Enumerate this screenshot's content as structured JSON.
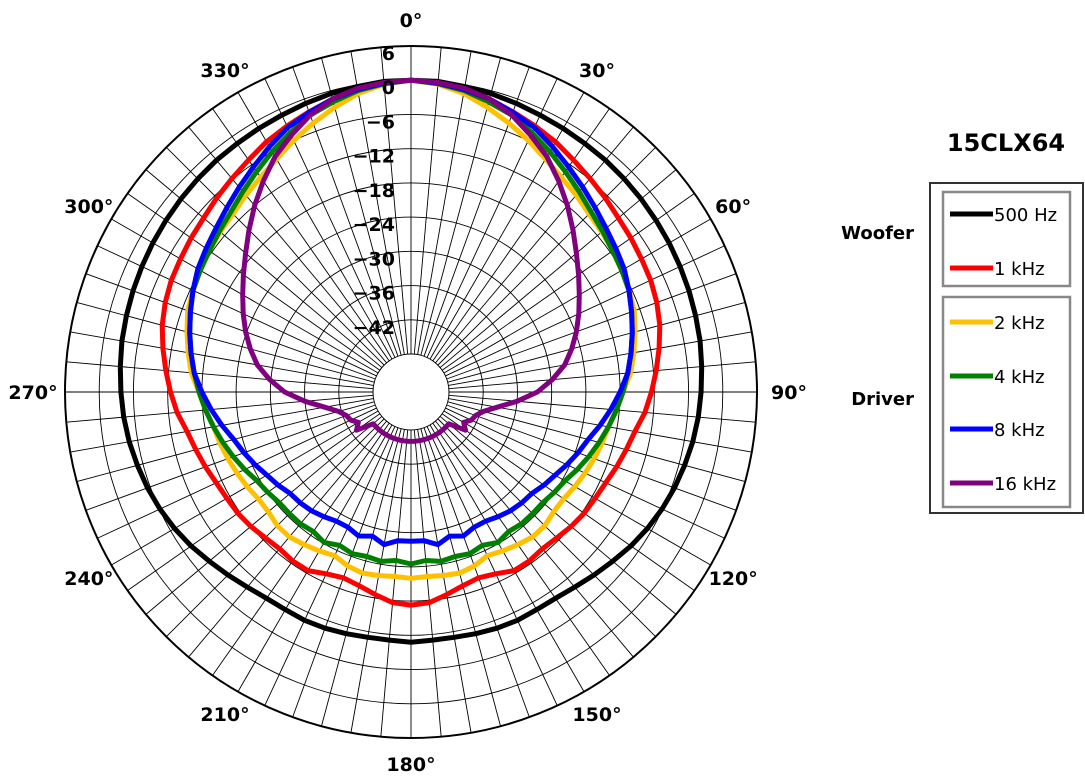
{
  "chart_data": {
    "type": "polar-line",
    "title": "15CLX64",
    "radial_ticks": [
      "6",
      "0",
      "−6",
      "−12",
      "−18",
      "−24",
      "−30",
      "−36",
      "−42"
    ],
    "radial_range_db": [
      -48,
      6
    ],
    "angle_ticks": [
      "0°",
      "30°",
      "60°",
      "90°",
      "120°",
      "150°",
      "180°",
      "210°",
      "240°",
      "270°",
      "300°",
      "330°"
    ],
    "angle_direction": "clockwise, 0° at top",
    "grid": true,
    "legend_placement": "right",
    "legend_groups": [
      {
        "label": "Woofer",
        "series": [
          "500 Hz",
          "1 kHz"
        ]
      },
      {
        "label": "Driver",
        "series": [
          "2 kHz",
          "4 kHz",
          "8 kHz",
          "16 kHz"
        ]
      }
    ],
    "series_note": "values are dB at angles 0,5,...,180 degrees; pattern mirrored for 185-355 degrees",
    "series": [
      {
        "name": "500 Hz",
        "color": "#000000",
        "values": [
          0,
          0,
          -0.3,
          -0.5,
          -0.8,
          -1.1,
          -1.3,
          -1.5,
          -1.6,
          -1.8,
          -2,
          -2.2,
          -2.4,
          -2.6,
          -2.8,
          -3,
          -3.2,
          -3.5,
          -3.8,
          -4.1,
          -4.5,
          -5,
          -5.5,
          -6.1,
          -6.8,
          -7.6,
          -8.5,
          -9.3,
          -10,
          -10.5,
          -10.6,
          -10.5,
          -10.6,
          -10.8,
          -11,
          -11,
          -10.8
        ]
      },
      {
        "name": "1 kHz",
        "color": "#ff0000",
        "values": [
          0,
          -0.3,
          -0.8,
          -1.5,
          -2.4,
          -3.2,
          -4,
          -5,
          -5.8,
          -6.5,
          -7.2,
          -7.6,
          -8,
          -8.3,
          -8.8,
          -9.5,
          -10.5,
          -11.5,
          -12.5,
          -13.5,
          -14.8,
          -15.6,
          -16.3,
          -17,
          -17.4,
          -17.6,
          -18,
          -18.5,
          -18.8,
          -18.5,
          -18.5,
          -19.5,
          -20,
          -19.5,
          -18.6,
          -17.6,
          -17.3
        ]
      },
      {
        "name": "2 kHz",
        "color": "#ffc000",
        "values": [
          0,
          -0.5,
          -1.5,
          -3,
          -4.5,
          -6,
          -7.5,
          -8.7,
          -9.6,
          -10.5,
          -11,
          -11.5,
          -12,
          -12.5,
          -13,
          -14,
          -15,
          -16,
          -17.5,
          -18.5,
          -19.5,
          -20,
          -20.5,
          -21,
          -21.5,
          -22,
          -22,
          -21.5,
          -21.5,
          -22,
          -22.5,
          -23,
          -22.2,
          -21.8,
          -22,
          -22.2,
          -22
        ]
      },
      {
        "name": "4 kHz",
        "color": "#008000",
        "values": [
          0,
          -0.4,
          -1,
          -2,
          -3,
          -4.5,
          -6,
          -7.5,
          -8.8,
          -10,
          -10.8,
          -11.5,
          -12,
          -12.5,
          -13.5,
          -14.5,
          -15.5,
          -16.5,
          -17.5,
          -18.5,
          -19.5,
          -20.5,
          -21.5,
          -22.5,
          -23.5,
          -24,
          -24.5,
          -24.5,
          -24.5,
          -24.8,
          -24.2,
          -25,
          -24.5,
          -24.8,
          -24.5,
          -25,
          -24.5
        ]
      },
      {
        "name": "8 kHz",
        "color": "#0000ff",
        "values": [
          0,
          -0.3,
          -0.8,
          -1.5,
          -2.5,
          -3.5,
          -5,
          -6.5,
          -7.8,
          -9,
          -10,
          -10.8,
          -11.5,
          -12.5,
          -13.5,
          -14.5,
          -15.5,
          -16.5,
          -18,
          -19.5,
          -21,
          -22.5,
          -23.5,
          -24.5,
          -25.5,
          -26.2,
          -27,
          -27.2,
          -27.5,
          -28,
          -28.5,
          -28.5,
          -27.8,
          -28.5,
          -27.5,
          -28.5,
          -28.5
        ]
      },
      {
        "name": "16 kHz",
        "color": "#800080",
        "values": [
          0,
          -0.2,
          -0.6,
          -1.5,
          -3,
          -5,
          -7,
          -9.5,
          -12,
          -14.5,
          -16.8,
          -18.8,
          -20.6,
          -22.2,
          -23.8,
          -25.5,
          -27.3,
          -29.8,
          -32.5,
          -36,
          -39.3,
          -41.5,
          -42.6,
          -43,
          -44,
          -43,
          -46,
          -46,
          -46,
          -46,
          -46,
          -46,
          -46,
          -46,
          -46,
          -46,
          -46
        ]
      }
    ]
  }
}
